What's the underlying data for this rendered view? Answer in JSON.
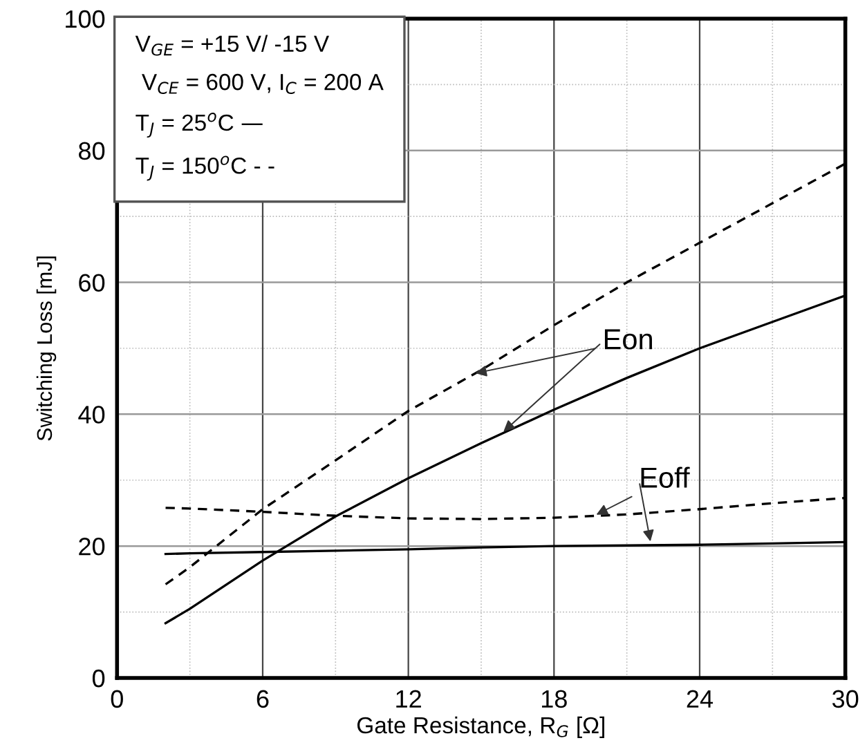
{
  "chart_data": {
    "type": "line",
    "xlabel": "Gate Resistance, R$_{G}$ [Ω]",
    "ylabel": "Switching Loss [mJ]",
    "xlim": [
      0,
      30
    ],
    "ylim": [
      0,
      100
    ],
    "xticks": [
      0,
      {
        "value": 3,
        "label": null
      },
      6,
      {
        "value": 9,
        "label": null
      },
      12,
      {
        "value": 15,
        "label": null
      },
      18,
      {
        "value": 21,
        "label": null
      },
      24,
      {
        "value": 27,
        "label": null
      },
      30
    ],
    "yticks": [
      0,
      {
        "value": 10,
        "label": null
      },
      20,
      {
        "value": 30,
        "label": null
      },
      40,
      {
        "value": 50,
        "label": null
      },
      60,
      {
        "value": 70,
        "label": null
      },
      80,
      {
        "value": 90,
        "label": null
      },
      100
    ],
    "grid": true,
    "x": [
      2,
      3,
      6,
      9,
      12,
      15,
      18,
      21,
      24,
      27,
      30
    ],
    "series": [
      {
        "color": "#000000",
        "line_style": "solid",
        "values": [
          8.3,
          10.5,
          17.8,
          24.5,
          30.3,
          35.6,
          40.7,
          45.5,
          50,
          54,
          58
        ]
      },
      {
        "color": "#000000",
        "line_style": "dashed",
        "values": [
          14.2,
          16.8,
          25.6,
          33,
          40.5,
          46.7,
          53.5,
          60,
          66,
          72,
          78
        ]
      },
      {
        "color": "#000000",
        "line_style": "solid",
        "values": [
          18.8,
          18.9,
          19.1,
          19.3,
          19.5,
          19.8,
          20,
          20.1,
          20.2,
          20.4,
          20.6
        ]
      },
      {
        "color": "#000000",
        "line_style": "dashed",
        "values": [
          25.8,
          25.7,
          25.2,
          24.6,
          24.2,
          24.1,
          24.3,
          24.8,
          25.6,
          26.5,
          27.3
        ]
      }
    ],
    "annotations": [
      "V$_{GE}$ = +15 V/ -15 V",
      " V$_{CE}$ = 600 V, I$_{C}$ = 200 A",
      "T$_{J}$ = 25$^{o}$C —",
      "T$_{J}$ = 150$^{o}$C - -",
      {
        "text": "Eon",
        "x": 14.6,
        "y": 46.1
      },
      {
        "text": "Eoff",
        "x": 19.6,
        "y": 24.5
      }
    ]
  }
}
